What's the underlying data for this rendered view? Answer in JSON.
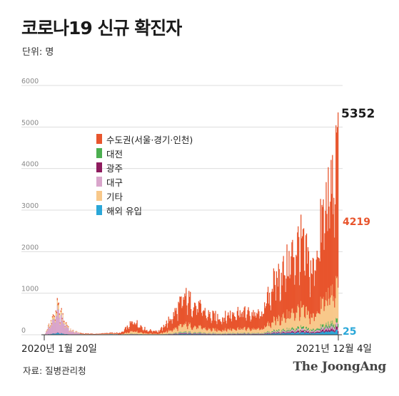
{
  "title": "코로나19 신규 확진자",
  "unit_label": "단위: 명",
  "source": "자료: 질병관리청",
  "brand": "The JoongAng",
  "colors": {
    "capital": "#e8552d",
    "daejeon": "#4caf50",
    "gwangju": "#8e1b5e",
    "daegu": "#d9a5cb",
    "other": "#f8c88a",
    "imported": "#2aa7d8",
    "grid": "#dddddd"
  },
  "chart_data": {
    "type": "area",
    "stacked": true,
    "x_start_label": "2020년 1월 20일",
    "x_end_label": "2021년 12월 4일",
    "y_ticks": [
      0,
      1000,
      2000,
      3000,
      4000,
      5000,
      6000
    ],
    "ylim": [
      0,
      6000
    ],
    "grid": true,
    "legend_position": "top-left",
    "legend": [
      {
        "key": "capital",
        "label": "수도권(서울·경기·인천)"
      },
      {
        "key": "daejeon",
        "label": "대전"
      },
      {
        "key": "gwangju",
        "label": "광주"
      },
      {
        "key": "daegu",
        "label": "대구"
      },
      {
        "key": "other",
        "label": "기타"
      },
      {
        "key": "imported",
        "label": "해외 유입"
      }
    ],
    "last_day": {
      "total": "5352",
      "capital": "4219",
      "imported": "25"
    },
    "months": [
      "2020-01",
      "2020-02",
      "2020-03",
      "2020-04",
      "2020-05",
      "2020-06",
      "2020-07",
      "2020-08",
      "2020-09",
      "2020-10",
      "2020-11",
      "2020-12",
      "2021-01",
      "2021-02",
      "2021-03",
      "2021-04",
      "2021-05",
      "2021-06",
      "2021-07",
      "2021-08",
      "2021-09",
      "2021-10",
      "2021-11",
      "2021-12"
    ],
    "approx_monthly_peak": [
      5,
      900,
      150,
      40,
      30,
      60,
      60,
      440,
      150,
      120,
      580,
      1200,
      900,
      600,
      550,
      750,
      700,
      650,
      1700,
      2200,
      3000,
      2000,
      4100,
      5352
    ]
  }
}
